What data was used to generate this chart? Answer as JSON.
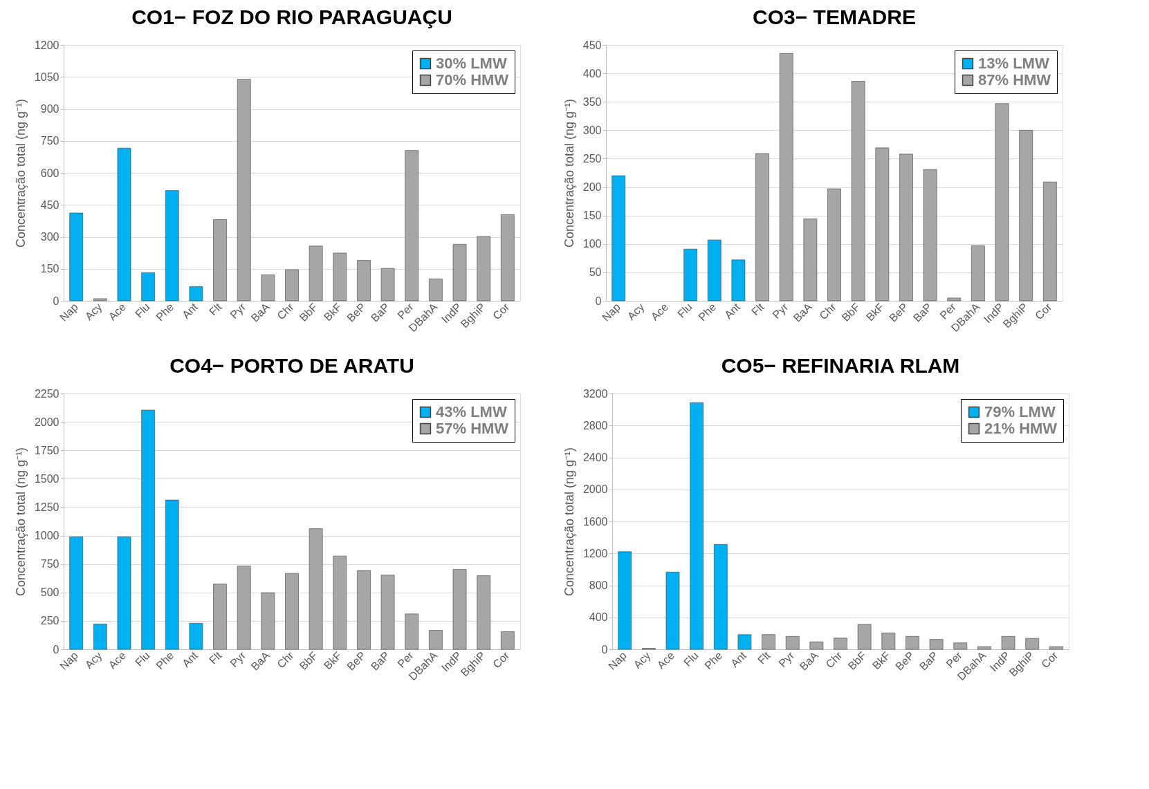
{
  "chart_data": [
    {
      "type": "bar",
      "title": "CO1− FOZ DO RIO PARAGUAÇU",
      "ylabel": "Concentração total (ng g⁻¹)",
      "categories": [
        "Nap",
        "Acy",
        "Ace",
        "Flu",
        "Phe",
        "Ant",
        "Flt",
        "Pyr",
        "BaA",
        "Chr",
        "BbF",
        "BkF",
        "BeP",
        "BaP",
        "Per",
        "DBahA",
        "IndP",
        "BghiP",
        "Cor"
      ],
      "series": [
        {
          "name": "30% LMW",
          "color": "#00b0f0",
          "values": [
            412,
            null,
            716,
            132,
            517,
            67,
            null,
            null,
            null,
            null,
            null,
            null,
            null,
            null,
            null,
            null,
            null,
            null,
            null
          ]
        },
        {
          "name": "70% HMW",
          "color": "#a6a6a6",
          "values": [
            null,
            10,
            null,
            null,
            null,
            null,
            381,
            1039,
            122,
            146,
            257,
            224,
            190,
            152,
            705,
            103,
            265,
            302,
            404
          ]
        }
      ],
      "ylim": [
        0,
        1200
      ],
      "yticks": [
        0,
        150,
        300,
        450,
        600,
        750,
        900,
        1050,
        1200
      ],
      "grid": "y",
      "legend": "top right"
    },
    {
      "type": "bar",
      "title": "CO3− TEMADRE",
      "ylabel": "Concentração total (ng g⁻¹)",
      "categories": [
        "Nap",
        "Acy",
        "Ace",
        "Flu",
        "Phe",
        "Ant",
        "Flt",
        "Pyr",
        "BaA",
        "Chr",
        "BbF",
        "BkF",
        "BeP",
        "BaP",
        "Per",
        "DBahA",
        "IndP",
        "BghiP",
        "Cor"
      ],
      "series": [
        {
          "name": "13% LMW",
          "color": "#00b0f0",
          "values": [
            220,
            null,
            null,
            91,
            107,
            72,
            null,
            null,
            null,
            null,
            null,
            null,
            null,
            null,
            null,
            null,
            null,
            null,
            null
          ]
        },
        {
          "name": "87% HMW",
          "color": "#a6a6a6",
          "values": [
            null,
            null,
            null,
            null,
            null,
            null,
            259,
            435,
            144,
            197,
            386,
            269,
            258,
            231,
            5,
            97,
            347,
            300,
            209
          ]
        }
      ],
      "ylim": [
        0,
        450
      ],
      "yticks": [
        0,
        50,
        100,
        150,
        200,
        250,
        300,
        350,
        400,
        450
      ],
      "grid": "y",
      "legend": "top right"
    },
    {
      "type": "bar",
      "title": "CO4− PORTO DE ARATU",
      "ylabel": "Concentração total (ng g⁻¹)",
      "categories": [
        "Nap",
        "Acy",
        "Ace",
        "Flu",
        "Phe",
        "Ant",
        "Flt",
        "Pyr",
        "BaA",
        "Chr",
        "BbF",
        "BkF",
        "BeP",
        "BaP",
        "Per",
        "DBahA",
        "IndP",
        "BghiP",
        "Cor"
      ],
      "series": [
        {
          "name": "43% LMW",
          "color": "#00b0f0",
          "values": [
            990,
            223,
            990,
            2104,
            1313,
            229,
            null,
            null,
            null,
            null,
            null,
            null,
            null,
            null,
            null,
            null,
            null,
            null,
            null
          ]
        },
        {
          "name": "57% HMW",
          "color": "#a6a6a6",
          "values": [
            null,
            null,
            null,
            null,
            null,
            null,
            574,
            733,
            498,
            668,
            1061,
            820,
            694,
            653,
            311,
            167,
            703,
            648,
            155
          ]
        }
      ],
      "ylim": [
        0,
        2250
      ],
      "yticks": [
        0,
        250,
        500,
        750,
        1000,
        1250,
        1500,
        1750,
        2000,
        2250
      ],
      "grid": "y",
      "legend": "top right"
    },
    {
      "type": "bar",
      "title": "CO5− REFINARIA RLAM",
      "ylabel": "Concentração total (ng g⁻¹)",
      "categories": [
        "Nap",
        "Acy",
        "Ace",
        "Flu",
        "Phe",
        "Ant",
        "Flt",
        "Pyr",
        "BaA",
        "Chr",
        "BbF",
        "BkF",
        "BeP",
        "BaP",
        "Per",
        "DBahA",
        "IndP",
        "BghiP",
        "Cor"
      ],
      "series": [
        {
          "name": "79% LMW",
          "color": "#00b0f0",
          "values": [
            1222,
            null,
            966,
            3085,
            1312,
            184,
            null,
            null,
            null,
            null,
            null,
            null,
            null,
            null,
            null,
            null,
            null,
            null,
            null
          ]
        },
        {
          "name": "21% HMW",
          "color": "#a6a6a6",
          "values": [
            null,
            13,
            null,
            null,
            null,
            null,
            184,
            162,
            94,
            141,
            312,
            205,
            162,
            124,
            81,
            34,
            162,
            137,
            34
          ]
        }
      ],
      "ylim": [
        0,
        3200
      ],
      "yticks": [
        0,
        400,
        800,
        1200,
        1600,
        2000,
        2400,
        2800,
        3200
      ],
      "grid": "y",
      "legend": "top right"
    }
  ]
}
